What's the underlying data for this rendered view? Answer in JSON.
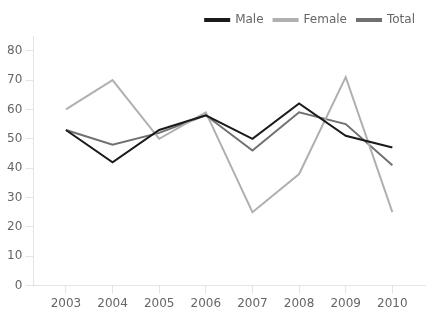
{
  "chart_data": {
    "type": "line",
    "x": [
      2003,
      2004,
      2005,
      2006,
      2007,
      2008,
      2009,
      2010
    ],
    "series": [
      {
        "name": "Male",
        "color": "#1a1a1a",
        "values": [
          53,
          42,
          53,
          58,
          50,
          62,
          51,
          47
        ]
      },
      {
        "name": "Female",
        "color": "#b0b0b0",
        "values": [
          60,
          70,
          50,
          59,
          25,
          38,
          71,
          25
        ]
      },
      {
        "name": "Total",
        "color": "#707070",
        "values": [
          53,
          48,
          52,
          58,
          46,
          59,
          55,
          41
        ]
      }
    ],
    "xlim": [
      2002.3,
      2010.7
    ],
    "xticks": [
      2003,
      2004,
      2005,
      2006,
      2007,
      2008,
      2009,
      2010
    ],
    "ylim": [
      0,
      85
    ],
    "yticks": [
      0,
      10,
      20,
      30,
      40,
      50,
      60,
      70,
      80
    ],
    "grid": false,
    "legend": "upper right"
  }
}
